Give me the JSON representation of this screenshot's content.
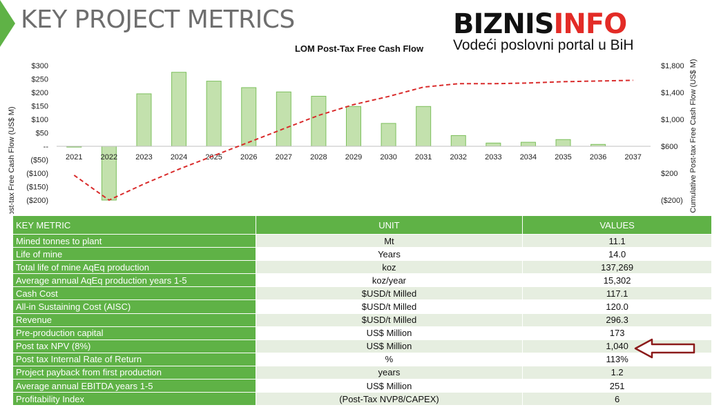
{
  "header": {
    "title": "KEY PROJECT METRICS",
    "logo_part1": "BIZNIS",
    "logo_part2": "INFO",
    "logo_tagline": "Vodeći poslovni portal u BiH"
  },
  "colors": {
    "accent_green": "#5fb246",
    "bar_fill": "#c3e1ad",
    "bar_stroke": "#7cbf5c",
    "line_red": "#d92b2b",
    "logo_red": "#e32b26",
    "arrow_red": "#8b1a1a"
  },
  "chart_data": {
    "type": "bar",
    "title": "LOM Post-Tax Free Cash Flow",
    "ylabel": "Post-tax Free Cash Flow (US$ M)",
    "ylabel_right": "Cumulative Post-tax Free Cash Flow (US$ M)",
    "categories": [
      "2021",
      "2022",
      "2023",
      "2024",
      "2025",
      "2026",
      "2027",
      "2028",
      "2029",
      "2030",
      "2031",
      "2032",
      "2033",
      "2034",
      "2035",
      "2036",
      "2037"
    ],
    "ylim": [
      -200,
      300
    ],
    "yticks": [
      -200,
      -150,
      -100,
      -50,
      0,
      50,
      100,
      150,
      200,
      250,
      300
    ],
    "ytick_labels": [
      "($200)",
      "($150)",
      "($100)",
      "($50)",
      "--",
      "$50",
      "$100",
      "$150",
      "$200",
      "$250",
      "$300"
    ],
    "y2lim": [
      -200,
      1800
    ],
    "y2ticks": [
      -200,
      200,
      600,
      1000,
      1400,
      1800
    ],
    "y2tick_labels": [
      "($200)",
      "$200",
      "$600",
      "$1,000",
      "$1,400",
      "$1,800"
    ],
    "series": [
      {
        "type": "bar",
        "axis": "left",
        "values": [
          -3,
          -200,
          195,
          275,
          242,
          218,
          202,
          186,
          148,
          85,
          148,
          40,
          12,
          15,
          25,
          7,
          0
        ]
      },
      {
        "type": "line",
        "axis": "right",
        "style": "dashed",
        "values": [
          170,
          -200,
          40,
          260,
          460,
          660,
          860,
          1060,
          1220,
          1340,
          1480,
          1530,
          1530,
          1540,
          1560,
          1570,
          1580
        ]
      }
    ],
    "grid": false,
    "legend": "none"
  },
  "table": {
    "headers": [
      "KEY METRIC",
      "UNIT",
      "VALUES"
    ],
    "rows": [
      {
        "metric": "Mined tonnes to plant",
        "unit": "Mt",
        "value": "11.1"
      },
      {
        "metric": "Life of mine",
        "unit": "Years",
        "value": "14.0"
      },
      {
        "metric": "Total life of mine AqEq production",
        "unit": "koz",
        "value": "137,269"
      },
      {
        "metric": "Average annual AqEq production years 1-5",
        "unit": "koz/year",
        "value": "15,302"
      },
      {
        "metric": "Cash Cost",
        "unit": "$USD/t Milled",
        "value": "117.1"
      },
      {
        "metric": "All-in Sustaining Cost (AISC)",
        "unit": "$USD/t Milled",
        "value": "120.0"
      },
      {
        "metric": "Revenue",
        "unit": "$USD/t Milled",
        "value": "296.3"
      },
      {
        "metric": "Pre-production capital",
        "unit": "US$ Million",
        "value": "173"
      },
      {
        "metric": "Post tax NPV (8%)",
        "unit": "US$ Million",
        "value": "1,040"
      },
      {
        "metric": "Post tax Internal Rate of Return",
        "unit": "%",
        "value": "113%"
      },
      {
        "metric": "Project payback from first production",
        "unit": "years",
        "value": "1.2"
      },
      {
        "metric": "Average annual EBITDA years 1-5",
        "unit": "US$ Million",
        "value": "251"
      },
      {
        "metric": "Profitability Index",
        "unit": "(Post-Tax NVP8/CAPEX)",
        "value": "6"
      }
    ]
  },
  "annotation": {
    "arrow_row": 8,
    "icon": "left-arrow-icon"
  }
}
